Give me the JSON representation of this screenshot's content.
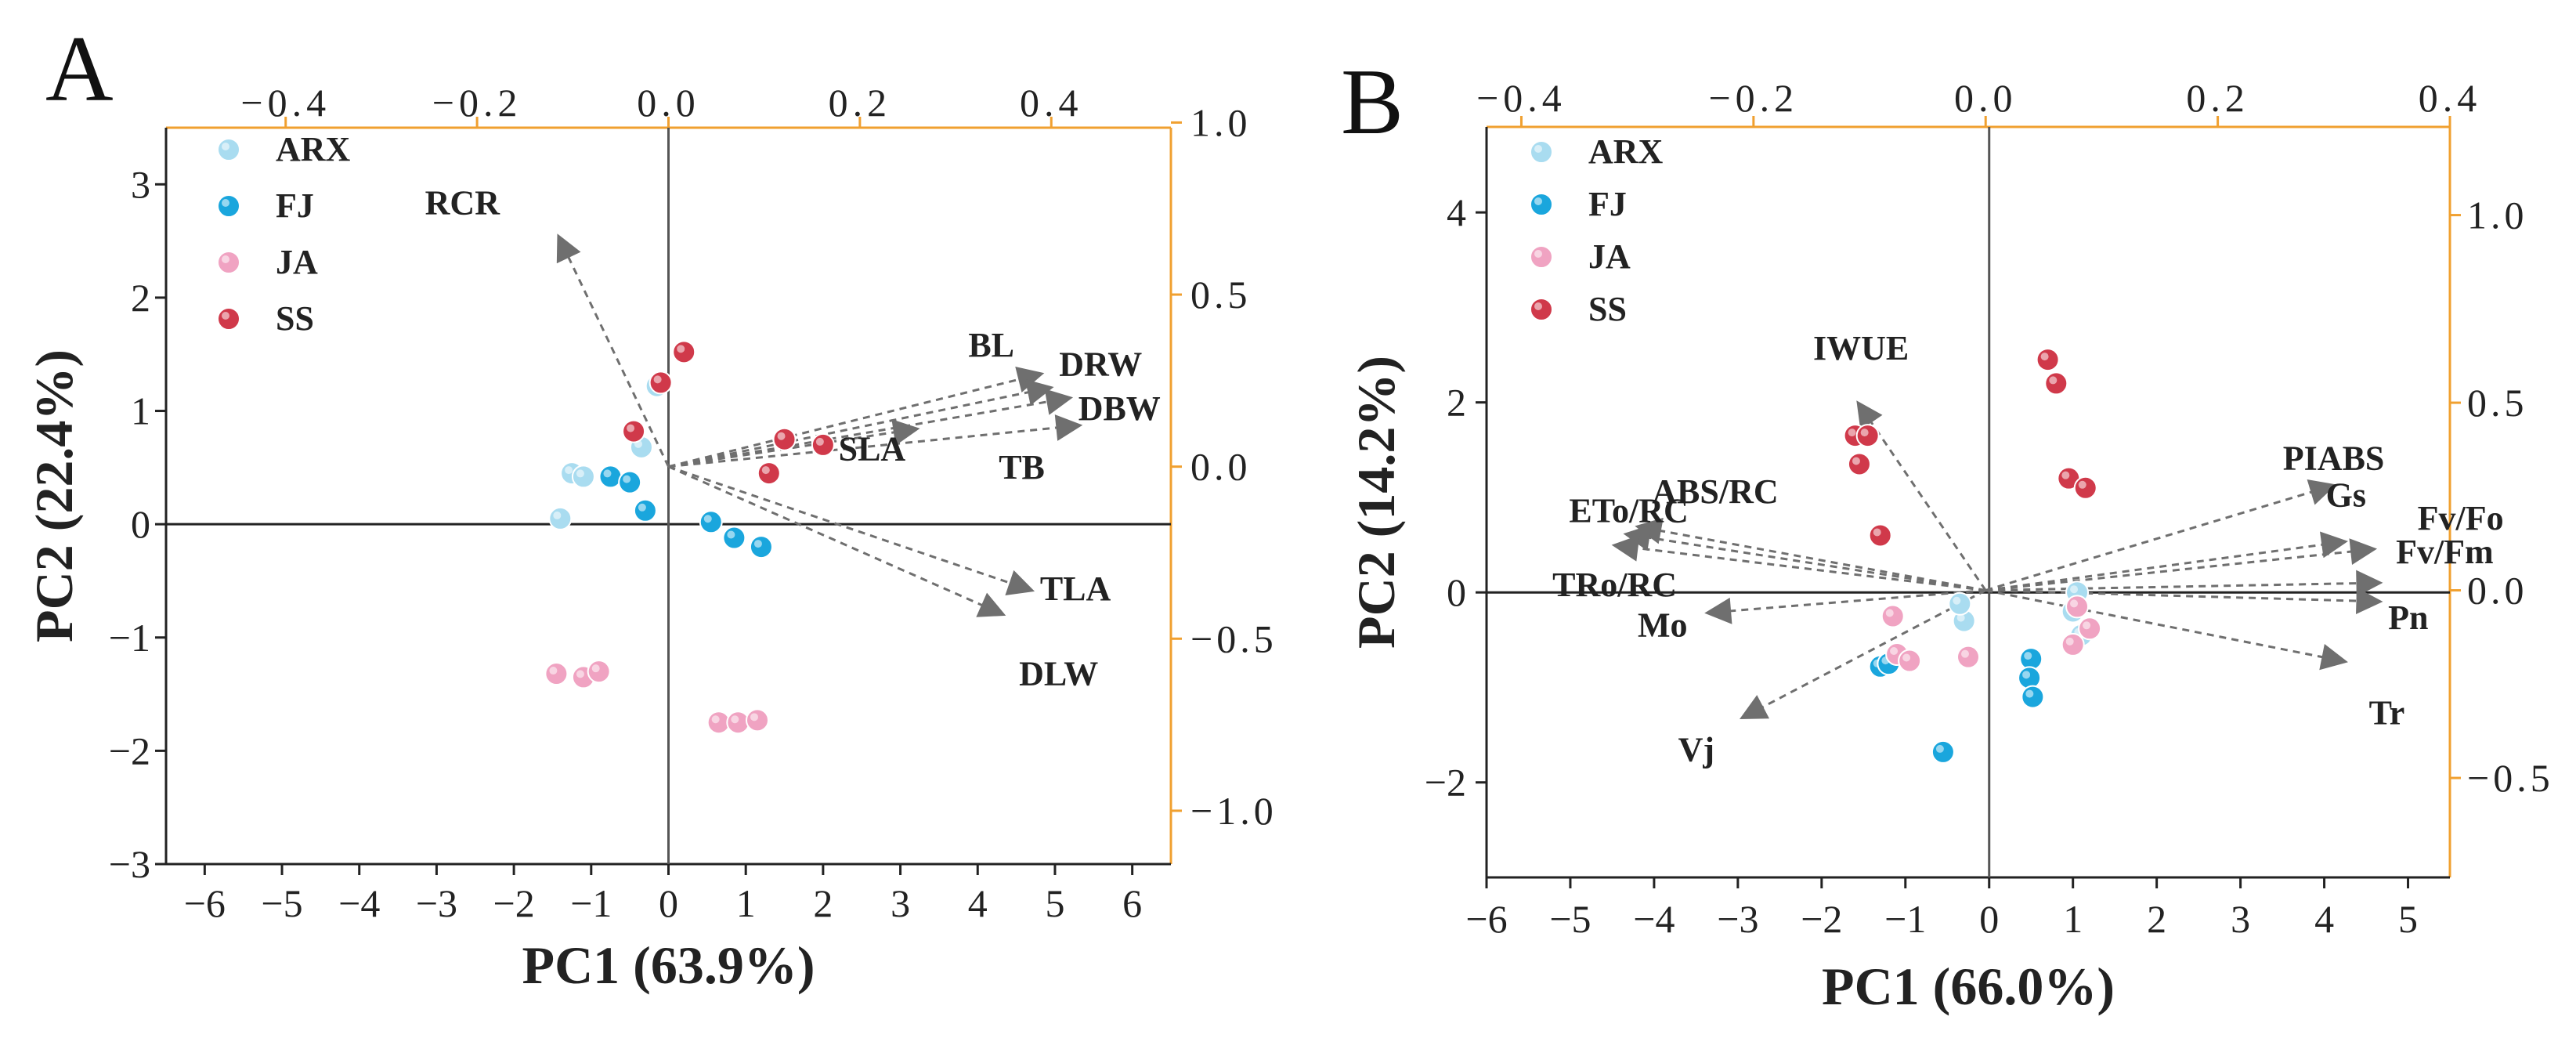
{
  "chart_data": [
    {
      "type": "scatter",
      "subtype": "pca-biplot",
      "panel_label": "A",
      "xlabel": "PC1 (63.9%)",
      "ylabel": "PC2 (22.4%)",
      "xlim": [
        -6.5,
        6.5
      ],
      "ylim": [
        -3,
        3.5
      ],
      "x_ticks": [
        -6,
        -5,
        -4,
        -3,
        -2,
        -1,
        0,
        1,
        2,
        3,
        4,
        5,
        6
      ],
      "x_tick_labels": [
        "−6",
        "−5",
        "−4",
        "−3",
        "−2",
        "−1",
        "0",
        "1",
        "2",
        "3",
        "4",
        "5",
        "6"
      ],
      "y_ticks": [
        -3,
        -2,
        -1,
        0,
        1,
        2,
        3
      ],
      "y_tick_labels": [
        "−3",
        "−2",
        "−1",
        "0",
        "1",
        "2",
        "3"
      ],
      "top_axis": {
        "lim": [
          -0.525,
          0.525
        ],
        "ticks": [
          -0.4,
          -0.2,
          0.0,
          0.2,
          0.4
        ],
        "tick_labels": [
          "−0.4",
          "−0.2",
          "0.0",
          "0.2",
          "0.4"
        ]
      },
      "right_axis": {
        "lim": [
          -1.155,
          0.985
        ],
        "ticks": [
          -1.0,
          -0.5,
          0.0,
          0.5,
          1.0
        ],
        "tick_labels": [
          "−1.0",
          "−0.5",
          "0.0",
          "0.5",
          "1.0"
        ]
      },
      "legend": [
        {
          "name": "ARX",
          "color": "#a9dcf0"
        },
        {
          "name": "FJ",
          "color": "#1aa6dd"
        },
        {
          "name": "JA",
          "color": "#f0a3c2"
        },
        {
          "name": "SS",
          "color": "#d0394a"
        }
      ],
      "series": [
        {
          "name": "ARX",
          "color": "#a9dcf0",
          "points": [
            [
              -1.25,
              0.45
            ],
            [
              -1.1,
              0.42
            ],
            [
              -1.4,
              0.05
            ],
            [
              -0.35,
              0.68
            ],
            [
              -0.15,
              1.22
            ]
          ]
        },
        {
          "name": "FJ",
          "color": "#1aa6dd",
          "points": [
            [
              -0.75,
              0.42
            ],
            [
              -0.5,
              0.37
            ],
            [
              -0.3,
              0.12
            ],
            [
              0.55,
              0.02
            ],
            [
              0.85,
              -0.12
            ],
            [
              1.2,
              -0.2
            ]
          ]
        },
        {
          "name": "JA",
          "color": "#f0a3c2",
          "points": [
            [
              -1.45,
              -1.32
            ],
            [
              -1.1,
              -1.35
            ],
            [
              -0.9,
              -1.3
            ],
            [
              0.65,
              -1.75
            ],
            [
              0.9,
              -1.75
            ],
            [
              1.15,
              -1.73
            ]
          ]
        },
        {
          "name": "SS",
          "color": "#d0394a",
          "points": [
            [
              0.2,
              1.52
            ],
            [
              -0.45,
              0.82
            ],
            [
              -0.1,
              1.25
            ],
            [
              1.5,
              0.75
            ],
            [
              2.0,
              0.7
            ],
            [
              1.3,
              0.45
            ]
          ]
        }
      ],
      "loadings": [
        {
          "label": "RCR",
          "x": -0.115,
          "y": 0.67
        },
        {
          "label": "BL",
          "x": 0.39,
          "y": 0.27
        },
        {
          "label": "DRW",
          "x": 0.4,
          "y": 0.23
        },
        {
          "label": "DBW",
          "x": 0.42,
          "y": 0.2
        },
        {
          "label": "TB",
          "x": 0.43,
          "y": 0.12
        },
        {
          "label": "SLA",
          "x": 0.26,
          "y": 0.11
        },
        {
          "label": "TLA",
          "x": 0.38,
          "y": -0.36
        },
        {
          "label": "DLW",
          "x": 0.35,
          "y": -0.43
        }
      ]
    },
    {
      "type": "scatter",
      "subtype": "pca-biplot",
      "panel_label": "B",
      "xlabel": "PC1 (66.0%)",
      "ylabel": "PC2 (14.2%)",
      "xlim": [
        -6,
        5.5
      ],
      "ylim": [
        -3,
        4.9
      ],
      "x_ticks": [
        -6,
        -5,
        -4,
        -3,
        -2,
        -1,
        0,
        1,
        2,
        3,
        4,
        5
      ],
      "x_tick_labels": [
        "−6",
        "−5",
        "−4",
        "−3",
        "−2",
        "−1",
        "0",
        "1",
        "2",
        "3",
        "4",
        "5"
      ],
      "y_ticks": [
        -2,
        0,
        2,
        4
      ],
      "y_tick_labels": [
        "−2",
        "0",
        "2",
        "4"
      ],
      "top_axis": {
        "lim": [
          -0.43,
          0.4
        ],
        "ticks": [
          -0.4,
          -0.2,
          0.0,
          0.2,
          0.4
        ],
        "tick_labels": [
          "−0.4",
          "−0.2",
          "0.0",
          "0.2",
          "0.4"
        ]
      },
      "right_axis": {
        "lim": [
          -0.765,
          1.235
        ],
        "ticks": [
          -0.5,
          0.0,
          0.5,
          1.0
        ],
        "tick_labels": [
          "−0.5",
          "0.0",
          "0.5",
          "1.0"
        ]
      },
      "legend": [
        {
          "name": "ARX",
          "color": "#a9dcf0"
        },
        {
          "name": "FJ",
          "color": "#1aa6dd"
        },
        {
          "name": "JA",
          "color": "#f0a3c2"
        },
        {
          "name": "SS",
          "color": "#d0394a"
        }
      ],
      "series": [
        {
          "name": "ARX",
          "color": "#a9dcf0",
          "points": [
            [
              -0.3,
              -0.3
            ],
            [
              1.0,
              -0.2
            ],
            [
              1.05,
              0.0
            ],
            [
              -0.35,
              -0.12
            ],
            [
              1.1,
              -0.45
            ]
          ]
        },
        {
          "name": "FJ",
          "color": "#1aa6dd",
          "points": [
            [
              -1.3,
              -0.78
            ],
            [
              -1.2,
              -0.75
            ],
            [
              0.5,
              -0.7
            ],
            [
              0.48,
              -0.9
            ],
            [
              0.52,
              -1.1
            ],
            [
              -0.55,
              -1.68
            ]
          ]
        },
        {
          "name": "JA",
          "color": "#f0a3c2",
          "points": [
            [
              -1.15,
              -0.25
            ],
            [
              -1.1,
              -0.65
            ],
            [
              -0.95,
              -0.72
            ],
            [
              -0.25,
              -0.68
            ],
            [
              1.05,
              -0.15
            ],
            [
              1.2,
              -0.38
            ],
            [
              1.0,
              -0.55
            ]
          ]
        },
        {
          "name": "SS",
          "color": "#d0394a",
          "points": [
            [
              -1.6,
              1.65
            ],
            [
              -1.45,
              1.65
            ],
            [
              -1.55,
              1.35
            ],
            [
              -1.3,
              0.6
            ],
            [
              0.7,
              2.45
            ],
            [
              0.8,
              2.2
            ],
            [
              0.95,
              1.2
            ],
            [
              1.15,
              1.1
            ]
          ]
        }
      ],
      "loadings": [
        {
          "label": "IWUE",
          "x": -0.11,
          "y": 0.5
        },
        {
          "label": "ABS/RC",
          "x": -0.3,
          "y": 0.17
        },
        {
          "label": "ETo/RC",
          "x": -0.31,
          "y": 0.15
        },
        {
          "label": "TRo/RC",
          "x": -0.32,
          "y": 0.12
        },
        {
          "label": "Mo",
          "x": -0.24,
          "y": -0.06
        },
        {
          "label": "Vj",
          "x": -0.21,
          "y": -0.34
        },
        {
          "label": "PIABS",
          "x": 0.3,
          "y": 0.28
        },
        {
          "label": "Gs",
          "x": 0.31,
          "y": 0.13
        },
        {
          "label": "Fv/Fo",
          "x": 0.335,
          "y": 0.11
        },
        {
          "label": "Fv/Fm",
          "x": 0.34,
          "y": 0.02
        },
        {
          "label": "Pn",
          "x": 0.34,
          "y": -0.03
        },
        {
          "label": "Tr",
          "x": 0.31,
          "y": -0.19
        }
      ]
    }
  ]
}
